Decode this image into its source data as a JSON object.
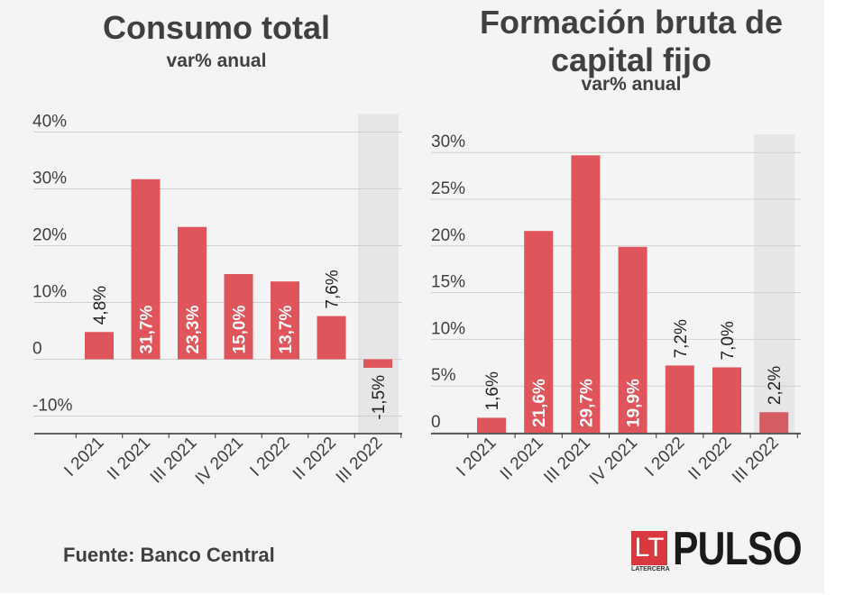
{
  "chart_data": [
    {
      "type": "bar",
      "title": "Consumo total",
      "subtitle": "var% anual",
      "categories": [
        "I 2021",
        "II 2021",
        "III 2021",
        "IV 2021",
        "I 2022",
        "II 2022",
        "III 2022"
      ],
      "values": [
        4.8,
        31.7,
        23.3,
        15.0,
        13.7,
        7.6,
        -1.5
      ],
      "value_labels": [
        "4,8%",
        "31,7%",
        "23,3%",
        "15,0%",
        "13,7%",
        "7,6%",
        "-1,5%"
      ],
      "yticks": [
        -10,
        0,
        10,
        20,
        30,
        40
      ],
      "ytick_labels": [
        "-10%",
        "0",
        "10%",
        "20%",
        "30%",
        "40%"
      ],
      "ylim": [
        -10,
        40
      ],
      "grid": true,
      "highlighted_category": "III 2022",
      "color": "#e0555b",
      "highlight_color": "#e0555b"
    },
    {
      "type": "bar",
      "title": "Formación bruta de capital fijo",
      "title_lines": [
        "Formación bruta de",
        "capital fijo"
      ],
      "subtitle": "var% anual",
      "categories": [
        "I 2021",
        "II 2021",
        "III 2021",
        "IV 2021",
        "I 2022",
        "II 2022",
        "III 2022"
      ],
      "values": [
        1.6,
        21.6,
        29.7,
        19.9,
        7.2,
        7.0,
        2.2
      ],
      "value_labels": [
        "1,6%",
        "21,6%",
        "29,7%",
        "19,9%",
        "7,2%",
        "7,0%",
        "2,2%"
      ],
      "yticks": [
        0,
        5,
        10,
        15,
        20,
        25,
        30
      ],
      "ytick_labels": [
        "0",
        "5%",
        "10%",
        "15%",
        "20%",
        "25%",
        "30%"
      ],
      "ylim": [
        0,
        30
      ],
      "grid": true,
      "highlighted_category": "III 2022",
      "color": "#e0555b",
      "highlight_color": "#d65c63"
    }
  ],
  "source": "Fuente: Banco Central",
  "logo": {
    "badge": "LT",
    "badge_caption": "LATERCERA",
    "wordmark": "PULSO"
  },
  "colors": {
    "bar": "#e0555b",
    "highlight_band": "#e6e6e6",
    "grid": "#cfcfcf",
    "text": "#404040",
    "background": "#f4f4f4"
  }
}
